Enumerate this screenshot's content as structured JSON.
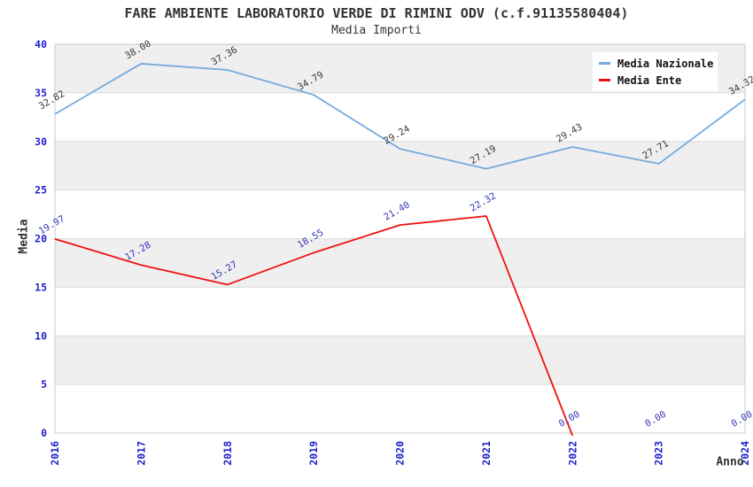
{
  "chart_data": {
    "type": "line",
    "title": "FARE AMBIENTE LABORATORIO VERDE DI RIMINI ODV (c.f.91135580404)",
    "subtitle": "Media Importi",
    "xlabel": "Anno",
    "ylabel": "Media",
    "categories": [
      "2016",
      "2017",
      "2018",
      "2019",
      "2020",
      "2021",
      "2022",
      "2023",
      "2024"
    ],
    "ylim": [
      0,
      40
    ],
    "yticks": [
      0,
      5,
      10,
      15,
      20,
      25,
      30,
      35,
      40
    ],
    "grid": "horizontal-gridlines-with-alternating-gray-bands",
    "legend_position": "top-right",
    "series": [
      {
        "name": "Media Nazionale",
        "color": "#74aade",
        "label_color": "#3a3a3a",
        "values": [
          32.82,
          38.0,
          37.36,
          34.79,
          29.24,
          27.19,
          29.43,
          27.71,
          34.32
        ],
        "labels": [
          "32.82",
          "38.00",
          "37.36",
          "34.79",
          "29.24",
          "27.19",
          "29.43",
          "27.71",
          "34.32"
        ],
        "line_stops_after_first_zero": false
      },
      {
        "name": "Media Ente",
        "color": "#ee1111",
        "label_color": "#3535bb",
        "values": [
          19.97,
          17.28,
          15.27,
          18.55,
          21.4,
          22.32,
          0,
          0,
          0
        ],
        "labels": [
          "19.97",
          "17.28",
          "15.27",
          "18.55",
          "21.40",
          "22.32",
          "0.00",
          "0.00",
          "0.00"
        ],
        "line_stops_after_first_zero": true
      }
    ],
    "colors": {
      "tick_label": "#2222cc",
      "band_fill": "#efefef",
      "gridline": "#dcdcdc",
      "frame": "#c8c8c8",
      "background": "#ffffff"
    }
  }
}
